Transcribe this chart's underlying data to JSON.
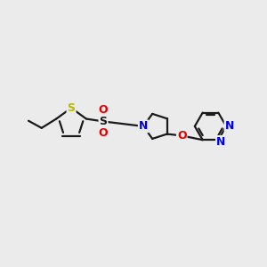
{
  "background_color": "#ebebeb",
  "bond_color": "#1a1a1a",
  "sulfur_color": "#b8b800",
  "nitrogen_color": "#0000e0",
  "oxygen_color": "#e00000",
  "sulfonyl_s_color": "#1a1a1a",
  "figsize": [
    3.0,
    3.0
  ],
  "dpi": 100,
  "xlim": [
    -3.8,
    4.2
  ],
  "ylim": [
    -2.2,
    2.2
  ]
}
